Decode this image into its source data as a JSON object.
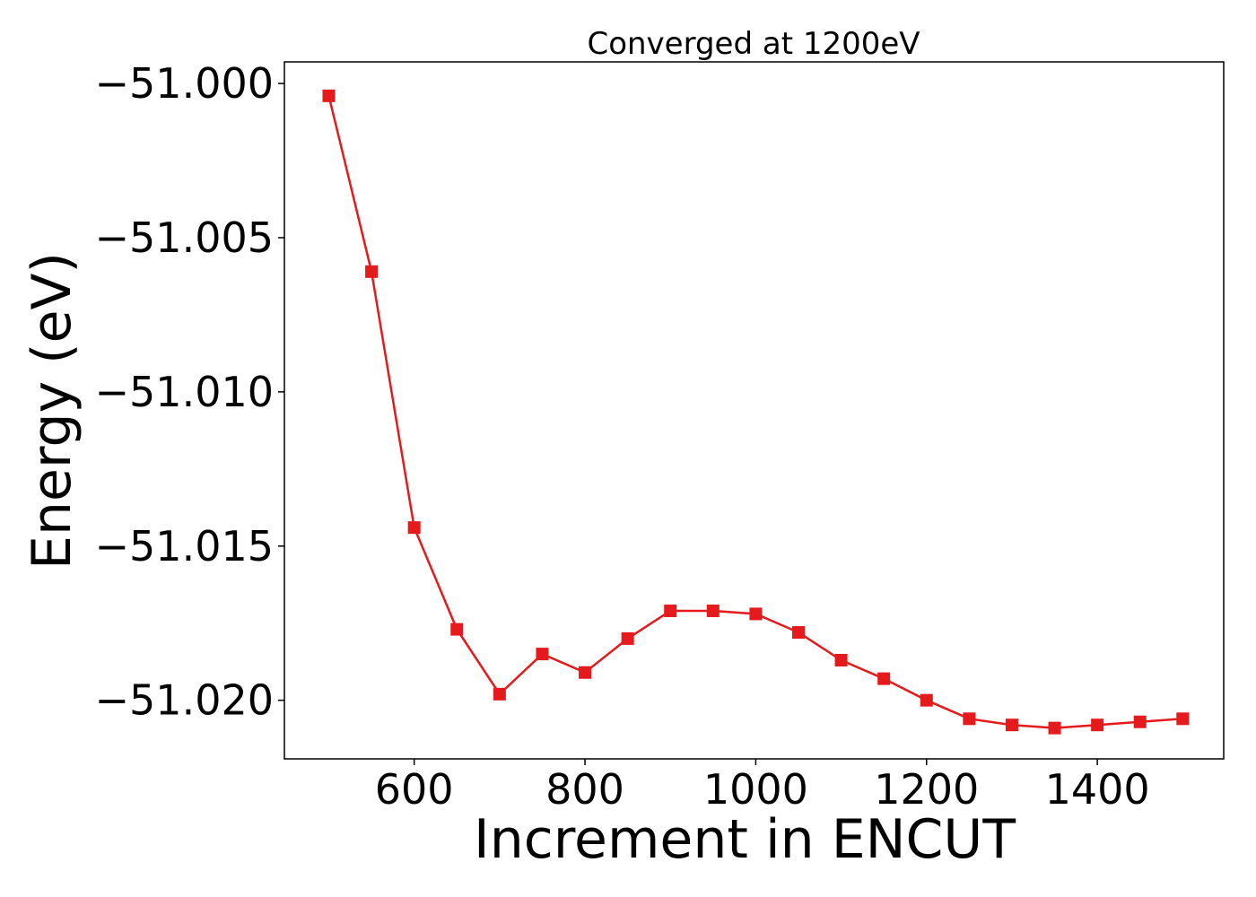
{
  "chart_data": {
    "type": "line",
    "title": "Converged at 1200eV",
    "xlabel": "Increment in ENCUT",
    "ylabel": "Energy (eV)",
    "xlim": [
      448,
      1548
    ],
    "ylim": [
      -51.0219,
      -50.9993
    ],
    "xticks": [
      600,
      800,
      1000,
      1200,
      1400
    ],
    "xtick_labels": [
      "600",
      "800",
      "1000",
      "1200",
      "1400"
    ],
    "yticks": [
      -51.0,
      -51.005,
      -51.01,
      -51.015,
      -51.02
    ],
    "ytick_labels": [
      "−51.000",
      "−51.005",
      "−51.010",
      "−51.015",
      "−51.020"
    ],
    "grid": false,
    "legend": "none",
    "series": [
      {
        "color": "#e41a1c",
        "marker": "square",
        "x": [
          500,
          550,
          600,
          650,
          700,
          750,
          800,
          850,
          900,
          950,
          1000,
          1050,
          1100,
          1150,
          1200,
          1250,
          1300,
          1350,
          1400,
          1450,
          1500
        ],
        "y": [
          -51.0004,
          -51.0061,
          -51.0144,
          -51.0177,
          -51.0198,
          -51.0185,
          -51.0191,
          -51.018,
          -51.0171,
          -51.0171,
          -51.0172,
          -51.0178,
          -51.0187,
          -51.0193,
          -51.02,
          -51.0206,
          -51.0208,
          -51.0209,
          -51.0208,
          -51.0207,
          -51.0206
        ]
      }
    ]
  }
}
